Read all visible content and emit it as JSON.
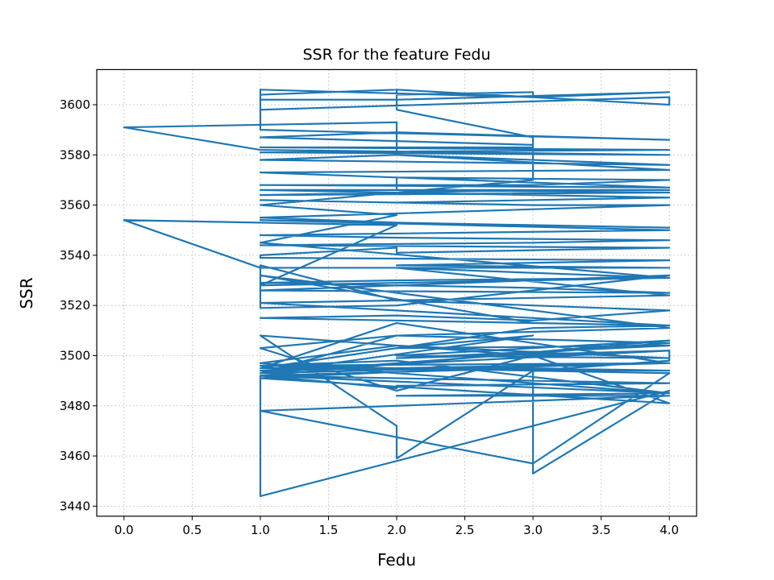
{
  "chart_data": {
    "type": "line",
    "title": "SSR for the feature Fedu",
    "xlabel": "Fedu",
    "ylabel": "SSR",
    "xlim": [
      -0.2,
      4.2
    ],
    "ylim": [
      3436,
      3614
    ],
    "xticks": [
      0.0,
      0.5,
      1.0,
      1.5,
      2.0,
      2.5,
      3.0,
      3.5,
      4.0
    ],
    "xtick_labels": [
      "0.0",
      "0.5",
      "1.0",
      "1.5",
      "2.0",
      "2.5",
      "3.0",
      "3.5",
      "4.0"
    ],
    "yticks": [
      3440,
      3460,
      3480,
      3500,
      3520,
      3540,
      3560,
      3580,
      3600
    ],
    "ytick_labels": [
      "3440",
      "3460",
      "3480",
      "3500",
      "3520",
      "3540",
      "3560",
      "3580",
      "3600"
    ],
    "grid": true,
    "color": "#1f77b4",
    "series": [
      {
        "x": [
          1,
          1,
          4,
          4,
          2,
          2,
          3,
          3,
          1,
          1,
          2,
          4,
          3,
          1,
          1,
          4,
          2,
          1,
          3,
          3,
          1,
          4,
          1,
          4,
          1,
          0,
          2,
          2,
          1,
          4,
          2,
          4,
          1,
          2,
          4,
          3,
          1,
          4,
          2,
          2,
          4,
          1,
          3,
          4,
          1,
          4,
          2,
          1,
          3,
          4,
          1,
          2,
          3,
          4,
          1,
          4,
          1,
          2,
          4,
          3,
          1,
          4,
          2,
          2,
          1,
          1,
          4,
          3,
          2,
          4,
          1,
          0,
          2,
          1,
          4,
          2,
          1,
          3,
          4,
          1,
          4,
          2,
          1,
          1,
          2,
          4,
          3,
          2,
          1,
          4,
          3,
          1,
          2,
          4,
          1,
          2,
          4,
          1,
          3,
          2,
          4,
          2,
          4,
          1,
          4,
          1,
          2,
          1,
          4,
          3,
          1,
          4,
          2,
          2,
          1,
          4,
          2,
          4,
          1,
          3,
          4,
          1,
          2,
          4,
          1,
          2,
          4,
          2,
          4,
          1,
          1,
          4,
          3,
          3,
          1,
          4,
          3,
          1,
          2,
          2,
          3,
          4,
          4,
          3,
          2,
          1,
          2,
          4,
          1,
          3,
          4,
          1,
          4,
          2,
          4,
          1,
          2,
          1,
          3,
          3,
          2,
          2,
          1
        ],
        "y": [
          3606,
          3598,
          3603,
          3600,
          3606,
          3604,
          3605,
          3603,
          3606,
          3602,
          3602,
          3605,
          3603,
          3606,
          3590,
          3586,
          3589,
          3587,
          3584,
          3583,
          3583,
          3582,
          3581,
          3580,
          3582,
          3591,
          3593,
          3580,
          3578,
          3576,
          3580,
          3574,
          3573,
          3571,
          3570,
          3568,
          3568,
          3567,
          3571,
          3566,
          3565,
          3564,
          3566,
          3566,
          3566,
          3563,
          3561,
          3562,
          3560,
          3560,
          3555,
          3553,
          3552,
          3551,
          3554,
          3550,
          3548,
          3547,
          3546,
          3545,
          3544,
          3543,
          3541,
          3543,
          3540,
          3539,
          3538,
          3537,
          3536,
          3535,
          3535,
          3554,
          3552,
          3528,
          3531,
          3530,
          3529,
          3527,
          3525,
          3526,
          3532,
          3520,
          3519,
          3536,
          3522,
          3518,
          3514,
          3516,
          3515,
          3512,
          3511,
          3495,
          3513,
          3497,
          3493,
          3508,
          3505,
          3493,
          3508,
          3503,
          3504,
          3499,
          3502,
          3494,
          3497,
          3496,
          3495,
          3495,
          3494,
          3495,
          3492,
          3489,
          3488,
          3487,
          3492,
          3485,
          3484,
          3484,
          3478,
          3457,
          3493,
          3496,
          3498,
          3485,
          3497,
          3504,
          3499,
          3500,
          3506,
          3492,
          3444,
          3486,
          3453,
          3496,
          3491,
          3481,
          3500,
          3508,
          3472,
          3459,
          3494,
          3498,
          3502,
          3500,
          3486,
          3503,
          3508,
          3511,
          3532,
          3513,
          3512,
          3521,
          3524,
          3535,
          3531,
          3545,
          3556,
          3560,
          3570,
          3587,
          3598,
          3606,
          3604
        ]
      }
    ]
  }
}
